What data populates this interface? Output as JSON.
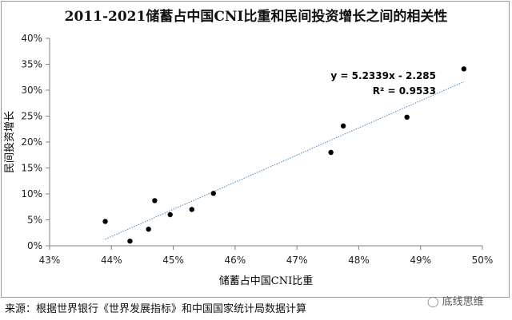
{
  "chart_data": {
    "type": "scatter",
    "title": "2011-2021储蓄占中国CNI比重和民间投资增长之间的相关性",
    "xlabel": "储蓄占中国CNI比重",
    "ylabel": "民间投资增长",
    "xlim": [
      0.43,
      0.5
    ],
    "ylim": [
      0,
      0.4
    ],
    "x_ticks": [
      "43%",
      "44%",
      "45%",
      "46%",
      "47%",
      "48%",
      "49%",
      "50%"
    ],
    "y_ticks": [
      "0%",
      "5%",
      "10%",
      "15%",
      "20%",
      "25%",
      "30%",
      "35%",
      "40%"
    ],
    "points": [
      {
        "x": 0.439,
        "y": 0.047
      },
      {
        "x": 0.443,
        "y": 0.009
      },
      {
        "x": 0.446,
        "y": 0.032
      },
      {
        "x": 0.447,
        "y": 0.087
      },
      {
        "x": 0.4495,
        "y": 0.06
      },
      {
        "x": 0.453,
        "y": 0.07
      },
      {
        "x": 0.4565,
        "y": 0.101
      },
      {
        "x": 0.4755,
        "y": 0.18
      },
      {
        "x": 0.4775,
        "y": 0.231
      },
      {
        "x": 0.4878,
        "y": 0.248
      },
      {
        "x": 0.497,
        "y": 0.341
      }
    ],
    "trendline": {
      "slope": 5.2339,
      "intercept": -2.285,
      "x_range": [
        0.439,
        0.497
      ]
    },
    "annotations": {
      "equation": "y = 5.2339x - 2.285",
      "r_squared": "R² = 0.9533"
    },
    "legend": "none",
    "grid": false,
    "colors": {
      "point": "#000000",
      "trendline": "#4a86c5",
      "axis": "#808080"
    }
  },
  "footer": {
    "source": "来源：根据世界银行《世界发展指标》和中国国家统计局数据计算",
    "watermark": "底线思维",
    "watermark_icon": "wechat-icon"
  }
}
